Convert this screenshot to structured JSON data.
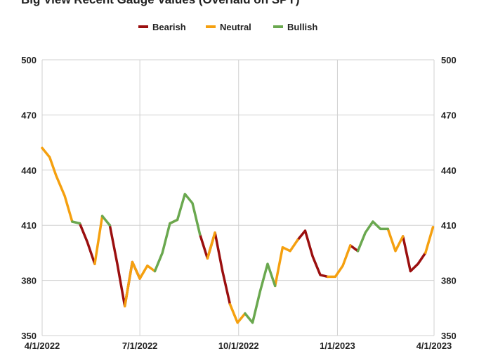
{
  "chart_data": {
    "type": "line",
    "title": "Big View Recent Gauge Values (Overlaid on SPY)",
    "x": [
      "4/1/2022",
      "4/8/2022",
      "4/14/2022",
      "4/22/2022",
      "4/29/2022",
      "5/6/2022",
      "5/13/2022",
      "5/20/2022",
      "5/27/2022",
      "6/3/2022",
      "6/10/2022",
      "6/17/2022",
      "6/24/2022",
      "7/1/2022",
      "7/8/2022",
      "7/15/2022",
      "7/22/2022",
      "7/29/2022",
      "8/5/2022",
      "8/12/2022",
      "8/19/2022",
      "8/26/2022",
      "9/2/2022",
      "9/9/2022",
      "9/16/2022",
      "9/23/2022",
      "9/30/2022",
      "10/7/2022",
      "10/14/2022",
      "10/21/2022",
      "10/28/2022",
      "11/4/2022",
      "11/11/2022",
      "11/18/2022",
      "11/25/2022",
      "12/2/2022",
      "12/9/2022",
      "12/16/2022",
      "12/23/2022",
      "12/30/2022",
      "1/6/2023",
      "1/13/2023",
      "1/20/2023",
      "1/27/2023",
      "2/3/2023",
      "2/10/2023",
      "2/17/2023",
      "2/24/2023",
      "3/3/2023",
      "3/10/2023",
      "3/17/2023",
      "3/24/2023",
      "3/31/2023"
    ],
    "series": [
      {
        "name": "Bearish",
        "color": "#9b0f0f",
        "values": [
          null,
          null,
          null,
          null,
          null,
          411,
          401,
          389,
          null,
          410,
          389,
          366,
          390,
          381,
          null,
          null,
          null,
          null,
          null,
          null,
          null,
          405,
          392,
          406,
          385,
          367,
          null,
          null,
          null,
          null,
          null,
          null,
          null,
          null,
          402,
          407,
          393,
          383,
          382,
          null,
          null,
          399,
          396,
          null,
          null,
          null,
          null,
          null,
          404,
          385,
          389,
          395,
          null
        ]
      },
      {
        "name": "Neutral",
        "color": "#f5a00f",
        "values": [
          452,
          447,
          437,
          426,
          412,
          null,
          null,
          389,
          415,
          null,
          null,
          366,
          390,
          381,
          388,
          385,
          null,
          411,
          413,
          null,
          null,
          null,
          392,
          406,
          null,
          367,
          357,
          362,
          null,
          null,
          null,
          377,
          398,
          396,
          402,
          null,
          null,
          null,
          382,
          382,
          388,
          399,
          null,
          null,
          null,
          null,
          408,
          396,
          404,
          null,
          null,
          395,
          409
        ]
      },
      {
        "name": "Bullish",
        "color": "#6aa84f",
        "values": [
          null,
          null,
          null,
          null,
          412,
          411,
          null,
          null,
          415,
          410,
          null,
          null,
          null,
          null,
          null,
          385,
          395,
          411,
          413,
          427,
          422,
          405,
          null,
          null,
          null,
          null,
          null,
          362,
          357,
          374,
          389,
          377,
          null,
          null,
          null,
          null,
          null,
          null,
          null,
          null,
          null,
          null,
          396,
          406,
          412,
          408,
          408,
          null,
          null,
          null,
          null,
          null,
          null
        ]
      }
    ],
    "xlim": [
      "4/1/2022",
      "4/1/2023"
    ],
    "xticks": [
      "4/1/2022",
      "7/1/2022",
      "10/1/2022",
      "1/1/2023",
      "4/1/2023"
    ],
    "ylim": [
      350,
      500
    ],
    "yticks": [
      350,
      380,
      410,
      440,
      470,
      500
    ],
    "grid": true,
    "legend": "top"
  }
}
